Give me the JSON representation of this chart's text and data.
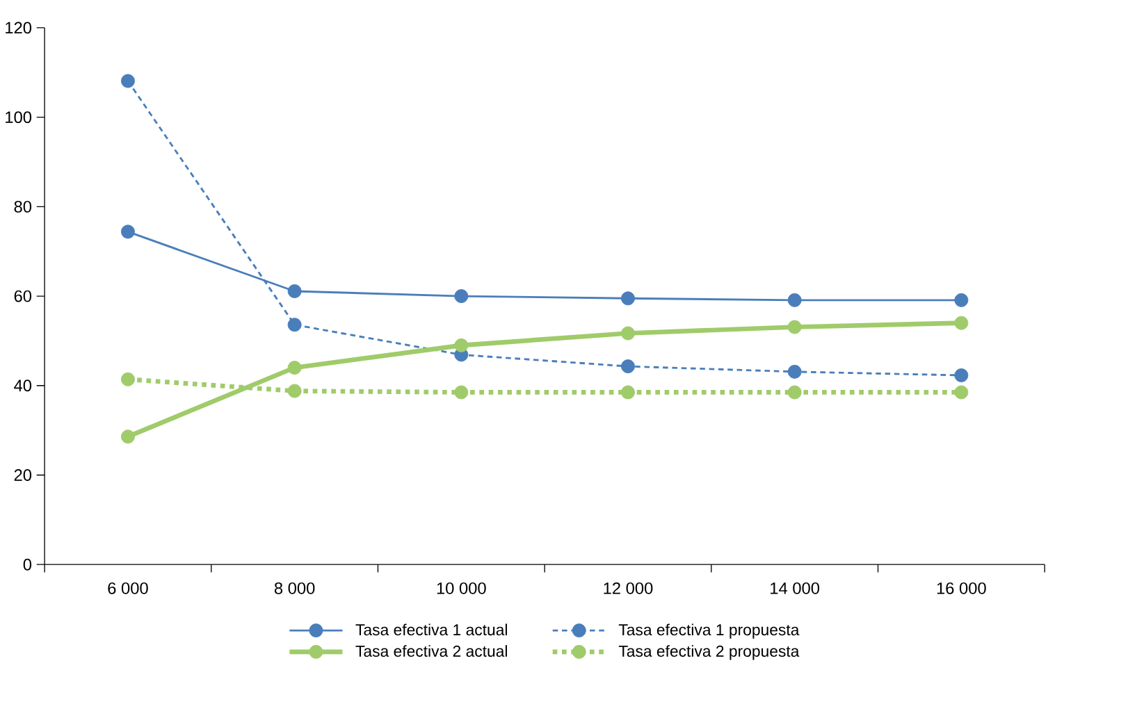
{
  "chart_data": {
    "type": "line",
    "categories": [
      "6 000",
      "8 000",
      "10 000",
      "12 000",
      "14 000",
      "16 000"
    ],
    "ylim": [
      0,
      120
    ],
    "yticks": [
      0,
      20,
      40,
      60,
      80,
      100,
      120
    ],
    "grid": false,
    "legend": "bottom",
    "marker": "circle",
    "series": [
      {
        "name": "Tasa efectiva 1 actual",
        "color": "#4a7ebb",
        "line_style": "solid",
        "values": [
          74.4,
          61.1,
          60.0,
          59.5,
          59.1,
          59.1
        ]
      },
      {
        "name": "Tasa efectiva 1 propuesta",
        "color": "#4a7ebb",
        "line_style": "dashed",
        "values": [
          108.1,
          53.6,
          46.9,
          44.3,
          43.1,
          42.3
        ]
      },
      {
        "name": "Tasa efectiva 2 actual",
        "color": "#a0cb6a",
        "line_style": "solid",
        "values": [
          28.6,
          44.0,
          49.0,
          51.7,
          53.1,
          54.0
        ]
      },
      {
        "name": "Tasa efectiva 2 propuesta",
        "color": "#a0cb6a",
        "line_style": "dotted",
        "values": [
          41.4,
          38.8,
          38.5,
          38.5,
          38.5,
          38.5
        ]
      }
    ]
  }
}
